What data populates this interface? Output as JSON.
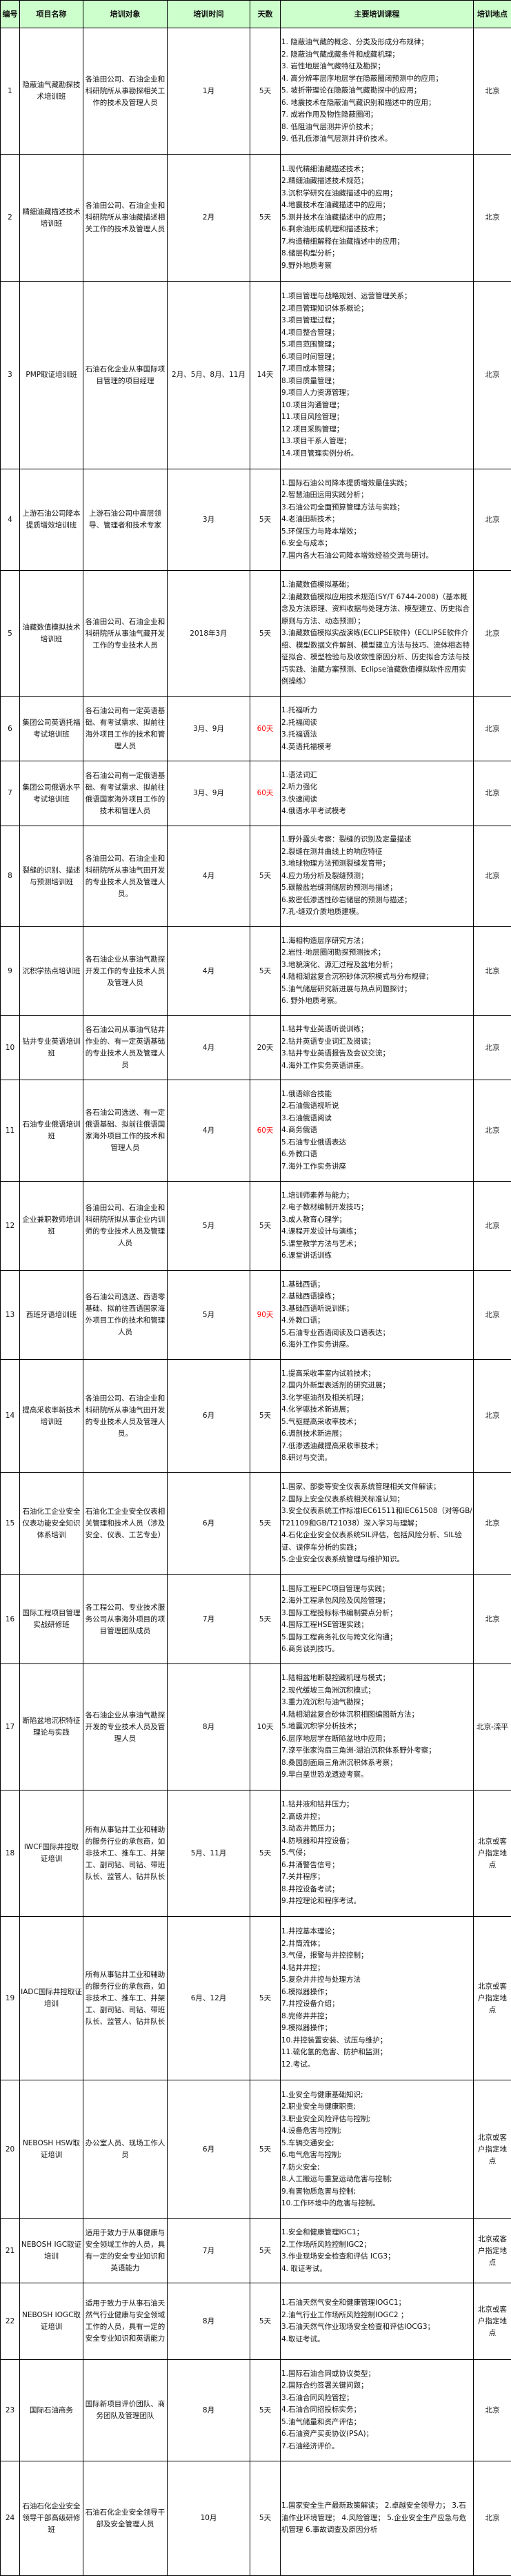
{
  "header": {
    "no": "编号",
    "name": "项目名称",
    "target": "培训对象",
    "time": "培训时间",
    "days": "天数",
    "courses": "主要培训课程",
    "location": "培训地点",
    "background_color": "#ccffcc"
  },
  "highlight_color": "#ff0000",
  "rows": [
    {
      "no": "1",
      "name": "隐蔽油气藏勘探技术培训班",
      "target": "各油田公司、石油企业和科研院所从事勘探相关工作的技术及管理人员",
      "time": "1月",
      "days": "5天",
      "days_highlight": false,
      "location": "北京",
      "courses": [
        "1. 隐蔽油气藏的概念、分类及形成分布规律；",
        "2. 隐蔽油气藏成藏条件和成藏机理；",
        "3. 岩性地层油气藏特征及勘探；",
        "4. 高分辨率层序地层学在隐蔽圈闭预测中的应用；",
        "5. 坡折带理论在隐蔽油气藏勘探中的应用；",
        "6. 地震技术在隐蔽油气藏识别和描述中的应用；",
        "7. 成岩作用及物性隐蔽圈闭；",
        "8. 低阻油气层测井评价技术；",
        "9. 低孔低渗油气层测井评价技术。"
      ]
    },
    {
      "no": "2",
      "name": "精细油藏描述技术培训班",
      "target": "各油田公司、石油企业和科研院所从事油藏描述相关工作的技术及管理人员",
      "time": "2月",
      "days": "5天",
      "days_highlight": false,
      "location": "北京",
      "courses": [
        "1.现代精细油藏描述技术；",
        "2.精细油藏描述技术规范；",
        "3.沉积学研究在油藏描述中的应用；",
        "4.地震技术在油藏描述中的应用；",
        "5.测井技术在油藏描述中的应用；",
        "6.剩余油形成机理和描述技术；",
        "7.构造精细解释在油藏描述中的应用；",
        "8.储层构型分析；",
        "9.野外地质考察"
      ]
    },
    {
      "no": "3",
      "name": "PMP取证培训班",
      "target": "石油石化企业从事国际项目管理的项目经理",
      "time": "2月、5月、8月、11月",
      "days": "14天",
      "days_highlight": false,
      "location": "北京",
      "courses": [
        "1.项目管理与战略规划、运营管理关系；",
        "2.项目管理知识体系概论；",
        "3.项目管理过程；",
        "4.项目整合管理；",
        "5.项目范围管理；",
        "6.项目时间管理；",
        "7.项目成本管理；",
        "8.项目质量管理；",
        "9.项目人力资源管理；",
        "10.项目沟通管理；",
        "11.项目风险管理；",
        "12.项目采购管理；",
        "13.项目干系人管理；",
        "14.项目管理实例分析。"
      ]
    },
    {
      "no": "4",
      "name": "上游石油公司降本提质增效培训班",
      "target": "上游石油公司中高层领导、管理者和技术专家",
      "time": "3月",
      "days": "5天",
      "days_highlight": false,
      "location": "北京",
      "courses": [
        "1.国际石油公司降本提质增效最佳实践；",
        "2.智慧油田运用实践分析；",
        "3.石油公司全面预算管理方法与实践；",
        "4.老油田新技术；",
        "5.环保压力与降本增效；",
        "6.安全与成本；",
        "7.国内各大石油公司降本增效经验交流与研讨。"
      ]
    },
    {
      "no": "5",
      "name": "油藏数值模拟技术培训班",
      "target": "各油田公司、石油企业和科研院所从事油气藏开发工作的专业技术人员",
      "time": "2018年3月",
      "days": "5天",
      "days_highlight": false,
      "location": "北京",
      "courses": [
        "1.油藏数值模拟基础；",
        "2.油藏数值模拟应用技术规范(SY/T 6744-2008)（基本概念及方法原理、资料收据与处理方法、模型建立、历史拟合原则与方法、动态预测）；",
        "3.油藏数值模拟实战演练(ECLIPSE软件)（ECLIPSE软件介绍、模型数据文件解剖、模型建立方法与技巧、流体相态特征拟合、模型检验与及收敛性原因分析、历史拟合方法与技巧实践、油藏方案预测、Eclipse油藏数值模拟软件应用实例操练）"
      ]
    },
    {
      "no": "6",
      "name": "集团公司英语托福考试培训班",
      "target": "各石油公司有一定英语基础、有考试需求、拟前往海外项目工作的技术和管理人员",
      "time": "3月、9月",
      "days": "60天",
      "days_highlight": true,
      "location": "北京",
      "courses": [
        "1.托福听力",
        "2.托福阅读",
        "3.托福语法",
        "4.英语托福模考"
      ]
    },
    {
      "no": "7",
      "name": "集团公司俄语水平考试培训班",
      "target": "各石油公司有一定俄语基础、有考试需求、拟前往俄语国家海外项目工作的技术和管理人员",
      "time": "3月、9月",
      "days": "60天",
      "days_highlight": true,
      "location": "北京",
      "courses": [
        "1.语法词汇",
        "2.听力强化",
        "3.快速阅读",
        "4.俄语水平考试模考"
      ]
    },
    {
      "no": "8",
      "name": "裂缝的识别、描述与预测培训班",
      "target": "各油田公司、石油企业和科研院所从事油气田开发的专业技术人员及管理人员。",
      "time": "4月",
      "days": "5天",
      "days_highlight": false,
      "location": "北京",
      "courses": [
        "1.野外露头考察：裂缝的识别及定量描述",
        "2.裂缝在测井曲线上的响应特征",
        "3.地球物理方法预测裂缝发育带；",
        "4.应力场分析及裂缝预测；",
        "5.碳酸盐岩缝洞储层的预测与描述；",
        "6.致密低渗透性砂岩储层的预测与描述；",
        "7.孔-缝双介质地质建模。"
      ]
    },
    {
      "no": "9",
      "name": "沉积学热点培训班",
      "target": "各石油企业从事油气勘探开发工作的专业技术人员及管理人员",
      "time": "4月",
      "days": "5天",
      "days_highlight": false,
      "location": "北京",
      "courses": [
        "1.海相构造层序研究方法；",
        "2.岩性-地层圈闭勘探预测技术；",
        "3.地貌演化、源汇过程及盆地分析；",
        "4.陆相湖盆复合沉积砂体沉积模式与分布规律；",
        "5.油气储层研究新进展与热点问题探讨；",
        "6. 野外地质考察。"
      ]
    },
    {
      "no": "10",
      "name": "钻井专业英语培训班",
      "target": "各石油公司从事油气钻井作业的、有一定英语基础的专业技术人员及管理人员",
      "time": "4月",
      "days": "20天",
      "days_highlight": false,
      "location": "北京",
      "courses": [
        "1.钻井专业英语听说训练；",
        "2.钻井英语专业词汇及阅读；",
        "3.钻井专业英语报告及会议交流；",
        "4.海外工作实务英语讲座。"
      ]
    },
    {
      "no": "11",
      "name": "石油专业俄语培训班",
      "target": "各石油公司选送、有一定俄语基础、拟前往俄语国家海外项目工作的技术和管理人员",
      "time": "4月",
      "days": "60天",
      "days_highlight": true,
      "location": "北京",
      "courses": [
        "1.俄语综合技能",
        "2.石油俄语视听说",
        "3.石油俄语阅读",
        "4.商务俄语",
        "5.石油专业俄语表达",
        "6.外教口语",
        "7.海外工作实务讲座"
      ]
    },
    {
      "no": "12",
      "name": "企业兼职教师培训班",
      "target": "各油田公司、石油企业和科研院所拟从事企业内训师的专业技术人员及管理人员",
      "time": "5月",
      "days": "5天",
      "days_highlight": false,
      "location": "北京",
      "courses": [
        "1.培训师素养与能力；",
        "2.电子教材编制开发技巧；",
        "3.成人教育心理学；",
        "4.课程开发设计与演练；",
        "5.课堂教学方法与艺术；",
        "6.课堂讲话训练"
      ]
    },
    {
      "no": "13",
      "name": "西班牙语培训班",
      "target": "各石油公司选送、西语零基础、拟前往西语国家海外项目工作的技术和管理人员",
      "time": "5月",
      "days": "90天",
      "days_highlight": true,
      "location": "北京",
      "courses": [
        "1.基础西语；",
        "2.基础西语操练；",
        "3.基础西语听说训练；",
        "4.外教口语；",
        "5.石油专业西语阅读及口语表达；",
        "6.海外工作实务讲座。"
      ]
    },
    {
      "no": "14",
      "name": "提高采收率新技术培训班",
      "target": "各油田公司、石油企业和科研院所从事油气田开发的专业技术人员及管理人员。",
      "time": "6月",
      "days": "5天",
      "days_highlight": false,
      "location": "北京",
      "courses": [
        "1.提高采收率室内试验技术；",
        "2.国内外新型表活剂的研究进展；",
        "3.化学驱油剂及相关机理；",
        "4.化学驱技术新进展；",
        "5.气驱提高采收率技术；",
        "6.调剖技术新进展；",
        "7.低渗透油藏提高采收率技术；",
        "8.研讨与交流。"
      ]
    },
    {
      "no": "15",
      "name": "石油化工企业安全仪表功能安全知识体系培训",
      "target": "石油化工企业安全仪表相关管理和技术人员（涉及安全、仪表、工艺专业）",
      "time": "6月",
      "days": "5天",
      "days_highlight": false,
      "location": "北京",
      "courses": [
        "1.国家、部委等安全仪表系统管理相关文件解读；",
        "2.国际上安全仪表系统相关标准认知；",
        "3.安全仪表系统工作标准IEC61511和IEC61508（对等GB/T21109和GB/T21038）深入学习与理解；",
        "4.石化企业安全仪表系统SIL评估，包括风险分析、SIL验证、误停车分析的实践；",
        "5.企业安全仪表系统管理与维护知识。"
      ]
    },
    {
      "no": "16",
      "name": "国际工程项目管理实战研修班",
      "target": "各工程公司、专业技术服务公司从事海外项目的项目管理团队成员",
      "time": "7月",
      "days": "5天",
      "days_highlight": false,
      "location": "北京",
      "courses": [
        "1.国际工程EPC项目管理与实践；",
        "2.海外工程承包风险及风险管理；",
        "3.国际工程投标标书编制要点分析；",
        "4.国际工程HSE管理实践；",
        "5.国际工程商务礼仪与跨文化沟通；",
        "6.商务谈判技巧。"
      ]
    },
    {
      "no": "17",
      "name": "断陷盆地沉积特征理论与实践",
      "target": "各石油企业从事油气勘探开发的专业技术人员及管理人员",
      "time": "8月",
      "days": "10天",
      "days_highlight": false,
      "location": "北京-滦平",
      "courses": [
        "1.陆相盆地断裂控藏机理与模式；",
        "2.现代缓坡三角洲沉积模式；",
        "3.重力流沉积与油气勘探；",
        "4.陆相湖盆复合砂体沉积相图编图新方法；",
        "5.地震沉积学分析技术；",
        "6.层序地层学在断陷盆地中应用；",
        "7.滦平张家沟扇三角洲-湖泊沉积体系野外考察；",
        "8.桑园剖面扇三角洲沉积体系考察；",
        "9.早白垩世恐龙遗迹考察。"
      ]
    },
    {
      "no": "18",
      "name": "IWCF国际井控取证培训",
      "target": "所有从事钻井工业和辅助的服务行业的承包商，如非技术工、推车工、井架工、副司钻、司钻、带班队长、监管人、钻井队长",
      "time": "5月、11月",
      "days": "5天",
      "days_highlight": false,
      "location": "北京或客户指定地点",
      "courses": [
        "1.钻井液和钻井压力；",
        "2.高级井控；",
        "3.动态井筒压力；",
        "4.防喷器和井控设备；",
        "5.气侵；",
        "6.井涌警告信号；",
        "7.关井程序；",
        "8.井控设备考试；",
        "9.井控理论和程序考试。"
      ]
    },
    {
      "no": "19",
      "name": "IADC国际井控取证培训",
      "target": "所有从事钻井工业和辅助的服务行业的承包商，如非技术工、推车工、井架工、副司钻、司钻、带班队长、监管人、钻井队长",
      "time": "6月、12月",
      "days": "5天",
      "days_highlight": false,
      "location": "北京或客户指定地点",
      "courses": [
        "1.井控基本理论；",
        "2.井筒流体；",
        "3.气侵，报警与井控控制；",
        "4.钻井井控；",
        "5.复杂井井控与处理方法",
        "6.模拟器操作；",
        "7.井控设备介绍；",
        "8.完修井井控；",
        "9.模拟器操作；",
        "10.井控装置安装、试压与维护；",
        "11.硫化氢的危害、防护和监测；",
        "12.考试。"
      ]
    },
    {
      "no": "20",
      "name": "NEBOSH HSW取证培训",
      "target": "办公室人员、现场工作人员",
      "time": "6月",
      "days": "5天",
      "days_highlight": false,
      "location": "北京或客户指定地点",
      "courses": [
        "1.业安全与健康基础知识;",
        "2.职业安全与健康职责;",
        "3.职业安全风险评估与控制;",
        "4.设备危害与控制;",
        "5.车辆交通安全;",
        "6.电气危害与控制;",
        "7.防火安全;",
        "8.人工搬运与重复运动危害与控制;",
        "9.有害物质危害与控制;",
        "10.工作环境中的危害与控制。"
      ]
    },
    {
      "no": "21",
      "name": "NEBOSH IGC取证培训",
      "target": "适用于致力于从事健康与安全领域工作的人员，具有一定的安全专业知识和英语能力",
      "time": "7月",
      "days": "5天",
      "days_highlight": false,
      "location": "北京或客户指定地点",
      "courses": [
        "1.安全和健康管理IGC1；",
        "2.工作场所风险控制IGC2；",
        "3.作业现场安全检查和评估 ICG3；",
        "4. 取证考试。"
      ]
    },
    {
      "no": "22",
      "name": "NEBOSH IOGC取证培训",
      "target": "适用于致力于从事石油天然气行业健康与安全领域工作的人员，具有一定的安全专业知识和英语能力",
      "time": "8月",
      "days": "5天",
      "days_highlight": false,
      "location": "北京或客户指定地点",
      "courses": [
        "1.石油天然气安全和健康管理IOGC1；",
        "2.油气行业工作场所风险控制IOGC2 ；",
        "3.石油天然气作业现场安全检查和评估IOCG3；",
        "4.取证考试。"
      ]
    },
    {
      "no": "23",
      "name": "国际石油商务",
      "target": "国际新项目评价团队、商务团队及管理团队",
      "time": "8月",
      "days": "5天",
      "days_highlight": false,
      "location": "北京",
      "courses": [
        "1.国际石油合同或协议类型；",
        "2.国际合约签署关键问题；",
        "3.石油合同风险管控；",
        "4.石油合同招投标实务；",
        "5.油气储量和资产评估；",
        "6.石油资产买卖协议(PSA)；",
        "7.石油经济评价。"
      ]
    },
    {
      "no": "24",
      "name": "石油石化企业安全领导干部高级研修班",
      "target": "石油石化企业安全领导干部及安全管理人员",
      "time": "10月",
      "days": "5天",
      "days_highlight": false,
      "location": "北京",
      "courses": [
        "1.国家安全生产最新政策解读；                        2.卓越安全领导力；                            3.石油作业环境管理；                             4.风险管理；                                  5.企业安全生产应急与危机管理                                  6.事故调查及原因分析"
      ]
    }
  ]
}
